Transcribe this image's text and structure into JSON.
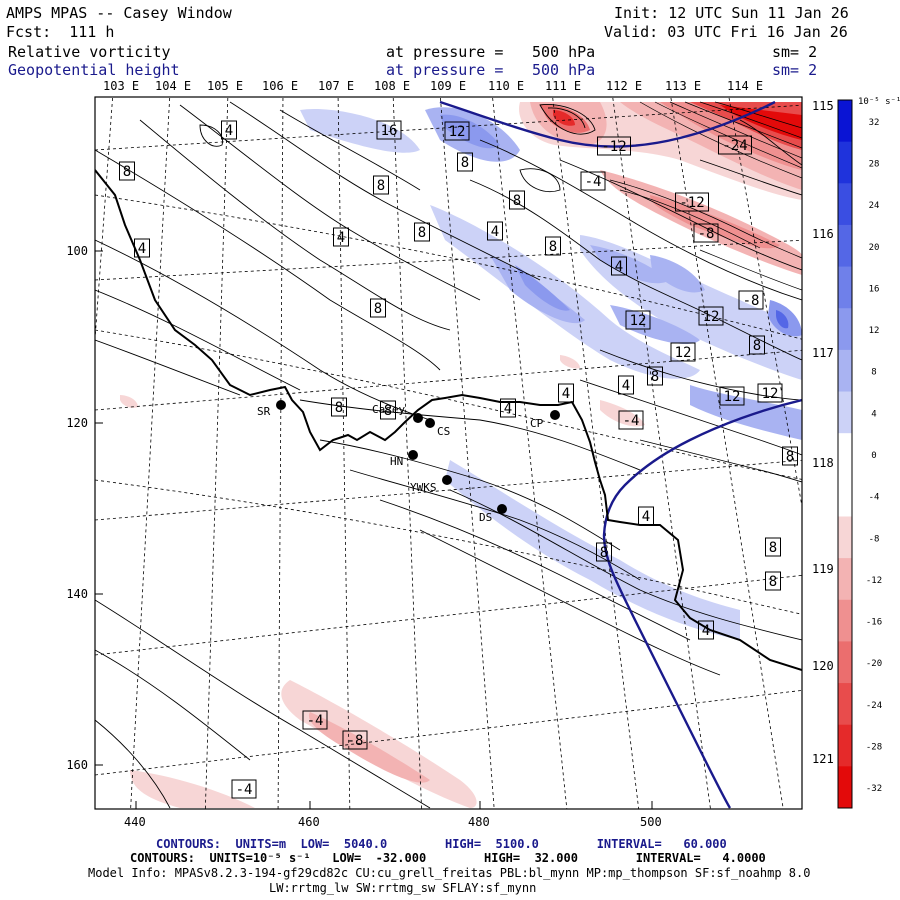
{
  "header": {
    "title": "AMPS MPAS -- Casey Window",
    "fcst": "Fcst:  111 h",
    "init": "Init: 12 UTC Sun 11 Jan 26",
    "valid": "Valid: 03 UTC Fri 16 Jan 26",
    "field1": {
      "name": "Relative vorticity",
      "pressure_label": "at pressure =",
      "pressure": "500 hPa",
      "sm": "sm= 2"
    },
    "field2": {
      "name": "Geopotential height",
      "pressure_label": "at pressure =",
      "pressure": "500 hPa",
      "sm": "sm= 2"
    }
  },
  "lon_labels": [
    "103 E",
    "104 E",
    "105 E",
    "106 E",
    "107 E",
    "108 E",
    "109 E",
    "110 E",
    "111 E",
    "112 E",
    "113 E",
    "114 E"
  ],
  "lat_labels_right": [
    "115 E",
    "116 E",
    "117 E",
    "118 E",
    "119 E",
    "120 E",
    "121 E"
  ],
  "x_ticks": [
    "440",
    "460",
    "480",
    "500"
  ],
  "y_ticks": [
    "100",
    "120",
    "140",
    "160"
  ],
  "colorbar": {
    "unit": "10⁻⁵ s⁻¹",
    "ticks": [
      "32",
      "28",
      "24",
      "20",
      "16",
      "12",
      "8",
      "4",
      "0",
      "-4",
      "-8",
      "-12",
      "-16",
      "-20",
      "-24",
      "-28",
      "-32"
    ],
    "colors": [
      "#0a14d4",
      "#1f33dc",
      "#3a4ee2",
      "#5467e6",
      "#6f80ea",
      "#8b99ee",
      "#a9b3f2",
      "#ccd2f7",
      "#ffffff",
      "#ffffff",
      "#f7d6d6",
      "#f3b3b3",
      "#ef9090",
      "#eb6e6e",
      "#e84c4c",
      "#e52a2a",
      "#e30a0a"
    ]
  },
  "stations": [
    {
      "code": "SR"
    },
    {
      "code": "Casey"
    },
    {
      "code": "CS"
    },
    {
      "code": "HN"
    },
    {
      "code": "YWKS"
    },
    {
      "code": "DS"
    },
    {
      "code": "CP"
    }
  ],
  "contour_labels": {
    "positive": [
      "4",
      "8",
      "4",
      "8",
      "4",
      "8",
      "8",
      "16",
      "12",
      "8",
      "8",
      "4",
      "8",
      "4",
      "12",
      "12",
      "12",
      "8",
      "8",
      "4",
      "4",
      "12",
      "12",
      "4",
      "8",
      "8",
      "8",
      "4",
      "4"
    ],
    "negative": [
      "-12",
      "-24",
      "-4",
      "-12",
      "-8",
      "-8",
      "-4",
      "-4",
      "-8",
      "-4"
    ]
  },
  "footer": {
    "line1": "CONTOURS:  UNITS=m  LOW=  5040.0        HIGH=  5100.0        INTERVAL=   60.000",
    "line2": "CONTOURS:  UNITS=10⁻⁵ s⁻¹   LOW=  -32.000        HIGH=  32.000        INTERVAL=   4.0000",
    "line3": "Model Info: MPASv8.2.3-194-gf29cd82c CU:cu_grell_freitas PBL:bl_mynn MP:mp_thompson SF:sf_noahmp 8.0",
    "line4": "LW:rrtmg_lw SW:rrtmg_sw SFLAY:sf_mynn"
  }
}
